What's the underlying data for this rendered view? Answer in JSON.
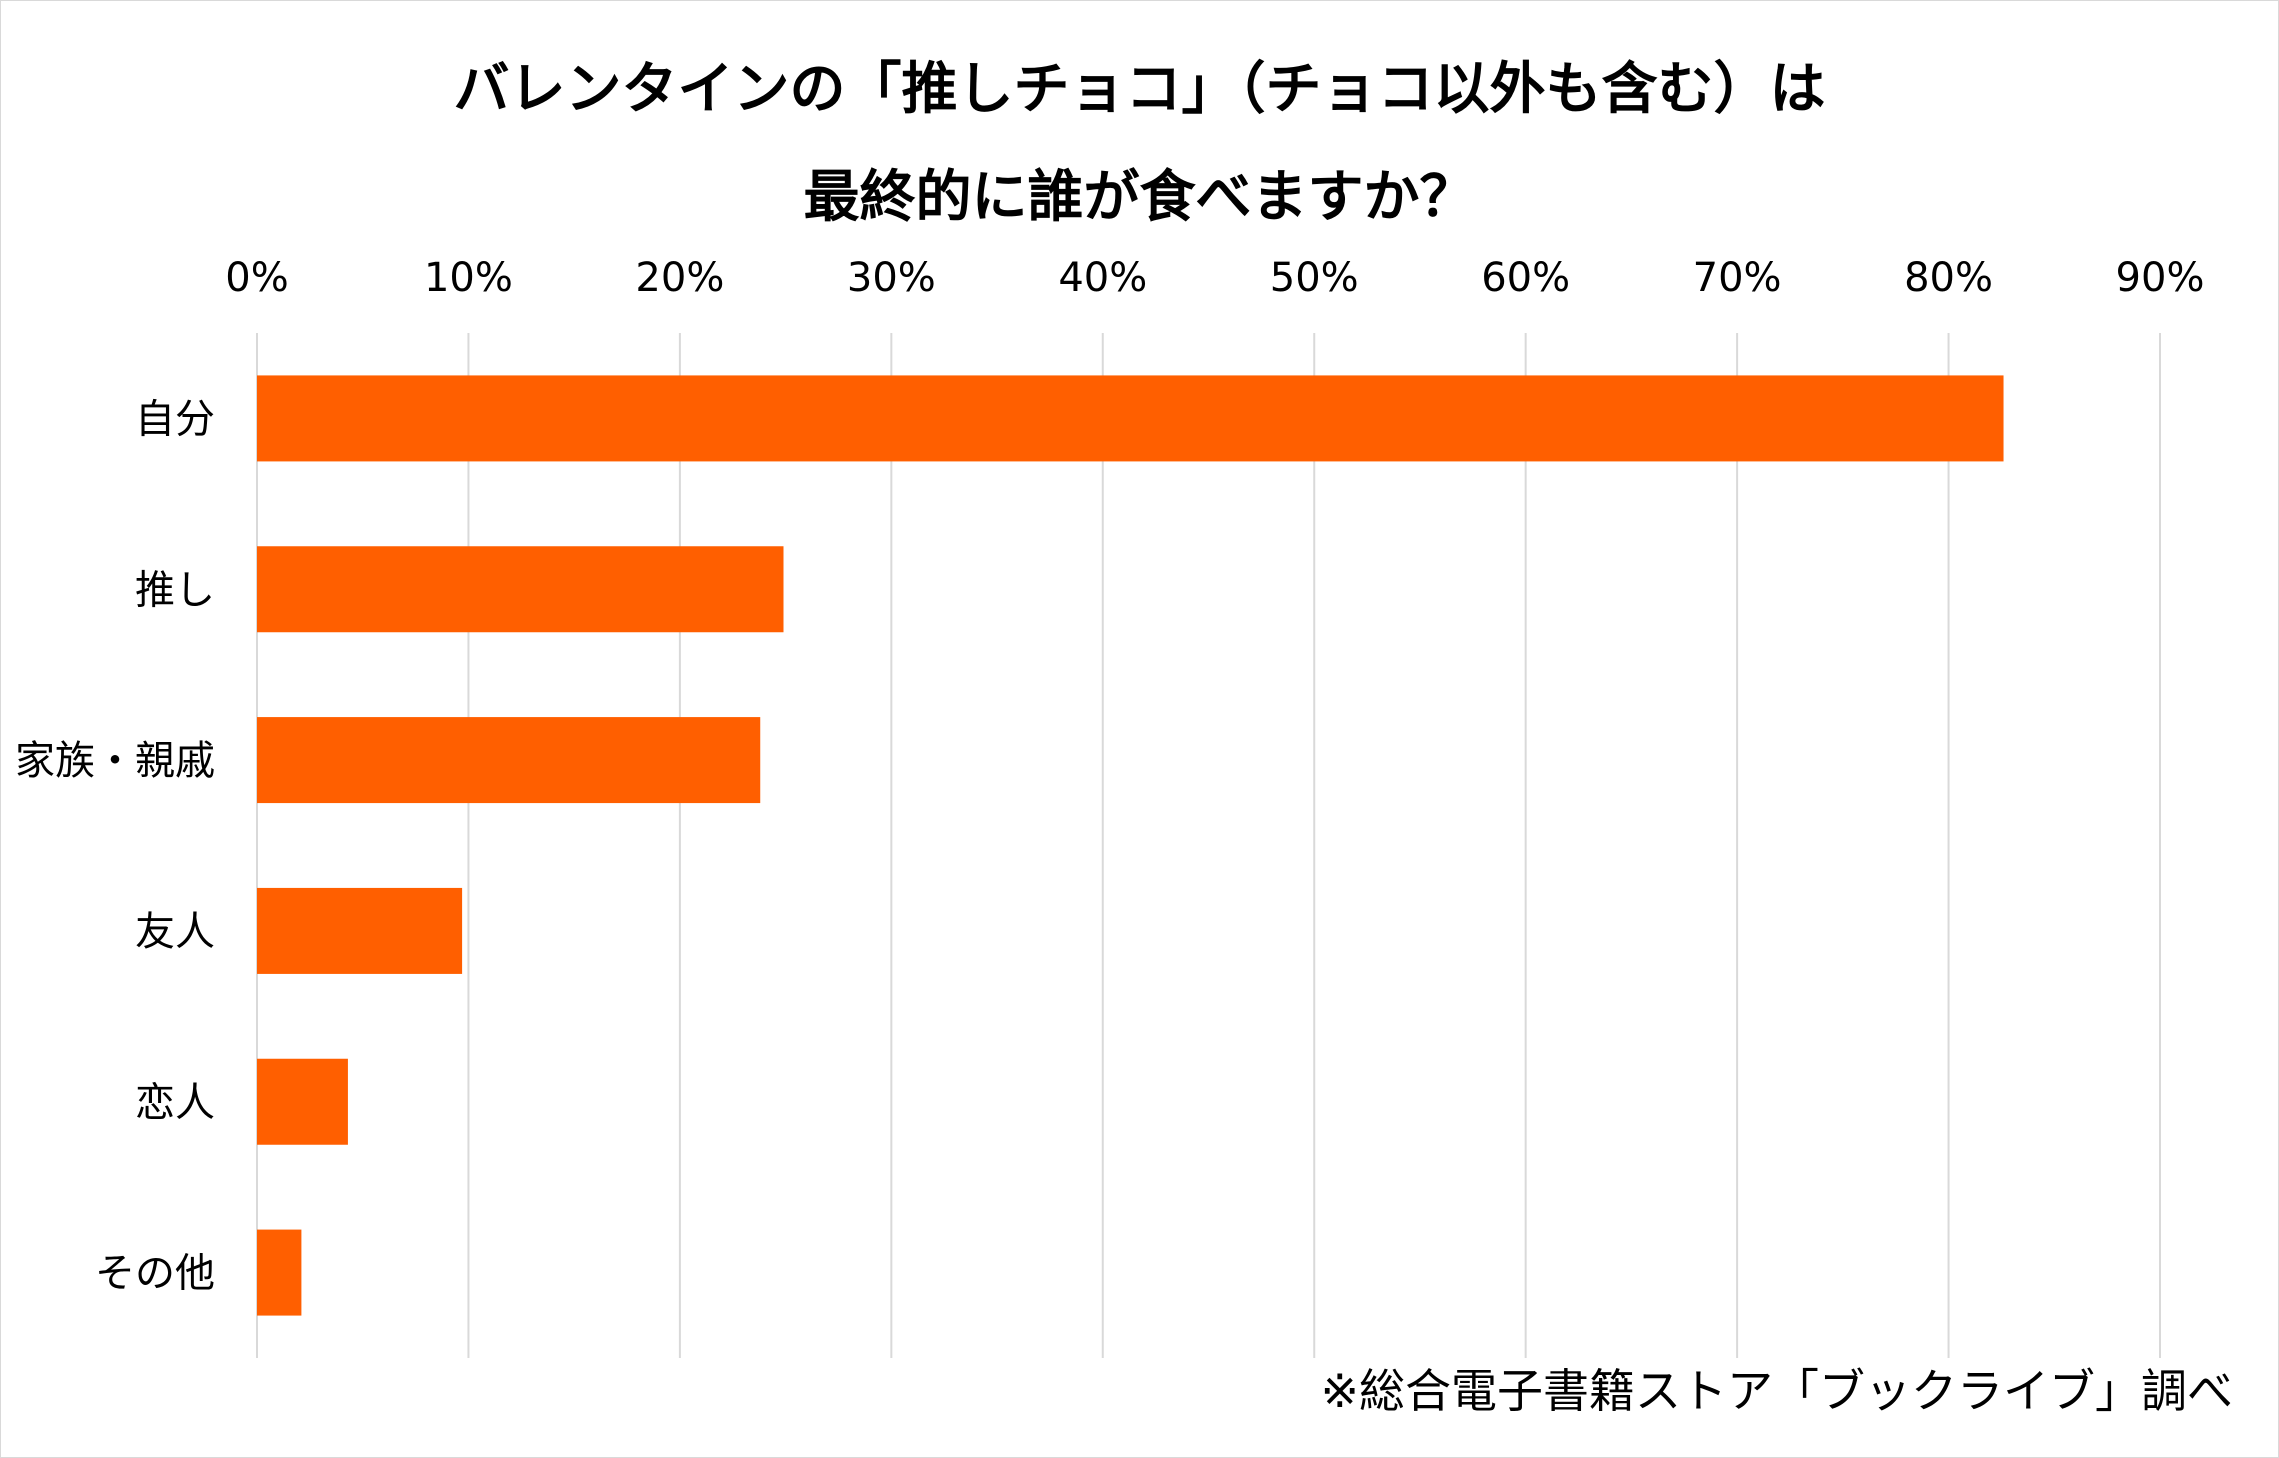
{
  "chart_data": {
    "type": "bar",
    "orientation": "horizontal",
    "title_lines": [
      "バレンタインの「推しチョコ」（チョコ以外も含む）は",
      "最終的に誰が食べますか？"
    ],
    "categories": [
      "自分",
      "推し",
      "家族・親戚",
      "友人",
      "恋人",
      "その他"
    ],
    "values": [
      82.6,
      24.9,
      23.8,
      9.7,
      4.3,
      2.1
    ],
    "value_unit": "%",
    "xlim": [
      0,
      90
    ],
    "xticks": [
      0,
      10,
      20,
      30,
      40,
      50,
      60,
      70,
      80,
      90
    ],
    "xtick_labels": [
      "0%",
      "10%",
      "20%",
      "30%",
      "40%",
      "50%",
      "60%",
      "70%",
      "80%",
      "90%"
    ],
    "xaxis_position": "top",
    "grid": true,
    "legend": "none",
    "bar_color": "#FF5F00",
    "grid_color": "#D9D9D9"
  },
  "source_note": "※総合電子書籍ストア「ブックライブ」調べ"
}
